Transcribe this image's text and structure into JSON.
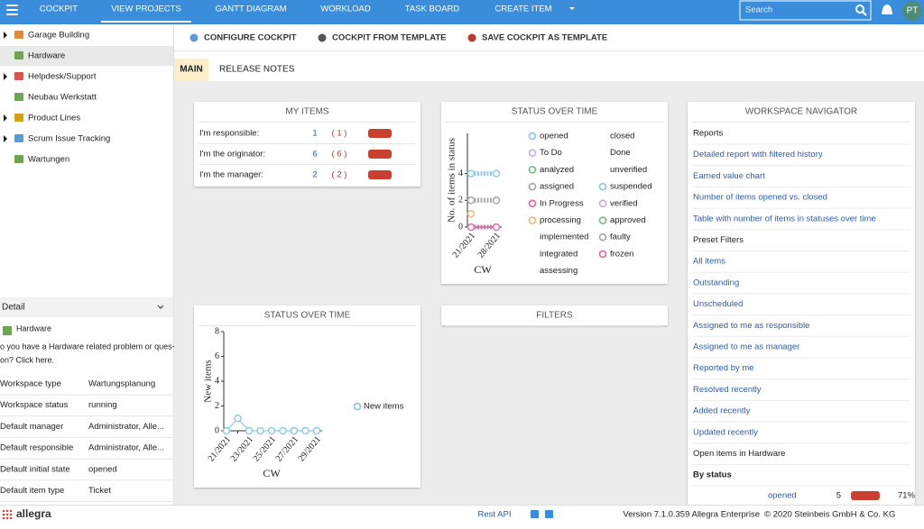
{
  "nav": {
    "items": [
      "COCKPIT",
      "VIEW PROJECTS",
      "GANTT DIAGRAM",
      "WORKLOAD",
      "TASK BOARD",
      "CREATE ITEM"
    ],
    "search_placeholder": "Search",
    "avatar": "PT"
  },
  "projects": [
    "Garage Building",
    "Hardware",
    "Helpdesk/Support",
    "Neubau Werkstatt",
    "Product Lines",
    "Scrum Issue Tracking",
    "Wartungen"
  ],
  "detail": {
    "title": "Detail",
    "workspace": "Hardware",
    "description_lines": [
      "o you have a Hardware related problem or ques-",
      "on? Click here."
    ],
    "properties": [
      [
        "Workspace type",
        "Wartungsplanung"
      ],
      [
        "Workspace status",
        "running"
      ],
      [
        "Default manager",
        "Administrator, Alle..."
      ],
      [
        "Default responsible",
        "Administrator, Alle..."
      ],
      [
        "Default initial state",
        "opened"
      ],
      [
        "Default item type",
        "Ticket"
      ]
    ]
  },
  "toolbar": [
    "CONFIGURE COCKPIT",
    "COCKPIT FROM TEMPLATE",
    "SAVE COCKPIT AS TEMPLATE"
  ],
  "tabs": [
    "MAIN",
    "RELEASE NOTES"
  ],
  "my_items": {
    "title": "MY ITEMS",
    "rows": [
      {
        "label": "I'm responsible:",
        "count": 1,
        "open_label": "( 1 )"
      },
      {
        "label": "I'm the originator:",
        "count": 6,
        "open_label": "( 6 )"
      },
      {
        "label": "I'm the manager:",
        "count": 2,
        "open_label": "( 2 )"
      }
    ]
  },
  "status_chart": {
    "type": "line",
    "title": "STATUS OVER TIME",
    "y_label": "No. of items in status",
    "x_label": "CW",
    "categories": [
      "21/2021",
      "28/2021"
    ],
    "ylim": [
      0,
      7
    ],
    "yticks": [
      0,
      2,
      4
    ],
    "series": [
      {
        "name": "opened",
        "color": "#8ecae6",
        "values": [
          4,
          4
        ]
      },
      {
        "name": "closed",
        "color": null,
        "values": [
          null,
          null
        ]
      },
      {
        "name": "To Do",
        "color": "#c9b3e0",
        "values": [
          null,
          null
        ]
      },
      {
        "name": "Done",
        "color": null,
        "values": [
          null,
          null
        ]
      },
      {
        "name": "analyzed",
        "color": "#7bc47f",
        "values": [
          2,
          2
        ]
      },
      {
        "name": "unverified",
        "color": null,
        "values": [
          null,
          null
        ]
      },
      {
        "name": "assigned",
        "color": "#aaaaaa",
        "values": [
          2,
          2
        ]
      },
      {
        "name": "suspended",
        "color": "#8ecae6",
        "values": [
          null,
          null
        ]
      },
      {
        "name": "In Progress",
        "color": "#e36fa6",
        "values": [
          null,
          null
        ]
      },
      {
        "name": "verified",
        "color": "#c9b3e0",
        "values": [
          null,
          null
        ]
      },
      {
        "name": "processing",
        "color": "#f0b97a",
        "values": [
          1,
          null
        ]
      },
      {
        "name": "approved",
        "color": "#7bc47f",
        "values": [
          null,
          null
        ]
      },
      {
        "name": "implemented",
        "color": null,
        "values": [
          null,
          null
        ]
      },
      {
        "name": "faulty",
        "color": "#aaaaaa",
        "values": [
          null,
          null
        ]
      },
      {
        "name": "integrated",
        "color": null,
        "values": [
          null,
          null
        ]
      },
      {
        "name": "frozen",
        "color": "#e36fa6",
        "values": [
          0,
          0
        ]
      },
      {
        "name": "assessing",
        "color": null,
        "values": [
          null,
          null
        ]
      }
    ]
  },
  "navigator": {
    "title": "WORKSPACE NAVIGATOR",
    "items": [
      {
        "label": "Reports",
        "kind": "header"
      },
      {
        "label": "Detailed report with filtered history",
        "kind": "link"
      },
      {
        "label": "Earned value chart",
        "kind": "link"
      },
      {
        "label": "Number of items opened vs. closed",
        "kind": "link"
      },
      {
        "label": "Table with number of items in statuses over time",
        "kind": "link"
      },
      {
        "label": "Preset Filters",
        "kind": "header"
      },
      {
        "label": "All items",
        "kind": "link"
      },
      {
        "label": "Outstanding",
        "kind": "link"
      },
      {
        "label": "Unscheduled",
        "kind": "link"
      },
      {
        "label": "Assigned to me as responsible",
        "kind": "link"
      },
      {
        "label": "Assigned to me as manager",
        "kind": "link"
      },
      {
        "label": "Reported by me",
        "kind": "link"
      },
      {
        "label": "Resolved recently",
        "kind": "link"
      },
      {
        "label": "Added recently",
        "kind": "link"
      },
      {
        "label": "Updated recently",
        "kind": "link"
      },
      {
        "label": "Open items in Hardware",
        "kind": "header"
      },
      {
        "label": "By status",
        "kind": "bold"
      }
    ],
    "status_rows": [
      {
        "label": "opened",
        "count": 5,
        "percent": 71,
        "percent_label": "71%"
      }
    ]
  },
  "new_items_chart": {
    "type": "line",
    "title": "STATUS OVER TIME",
    "y_label": "New items",
    "x_label": "CW",
    "categories": [
      "21/2021",
      null,
      "23/2021",
      null,
      "25/2021",
      null,
      "27/2021",
      null,
      "29/2021"
    ],
    "ylim": [
      0,
      8
    ],
    "yticks": [
      0,
      2,
      4,
      6,
      8
    ],
    "series": [
      {
        "name": "New items",
        "color": "#8ecae6",
        "values": [
          0,
          1,
          0,
          0,
          0,
          0,
          0,
          0,
          0
        ]
      }
    ]
  },
  "filters": {
    "title": "FILTERS"
  },
  "footer": {
    "logo": "allegra",
    "rest_api": "Rest API",
    "version": "Version 7.1.0.359 Allegra Enterprise",
    "copyright": "© 2020 Steinbeis GmbH & Co. KG"
  }
}
